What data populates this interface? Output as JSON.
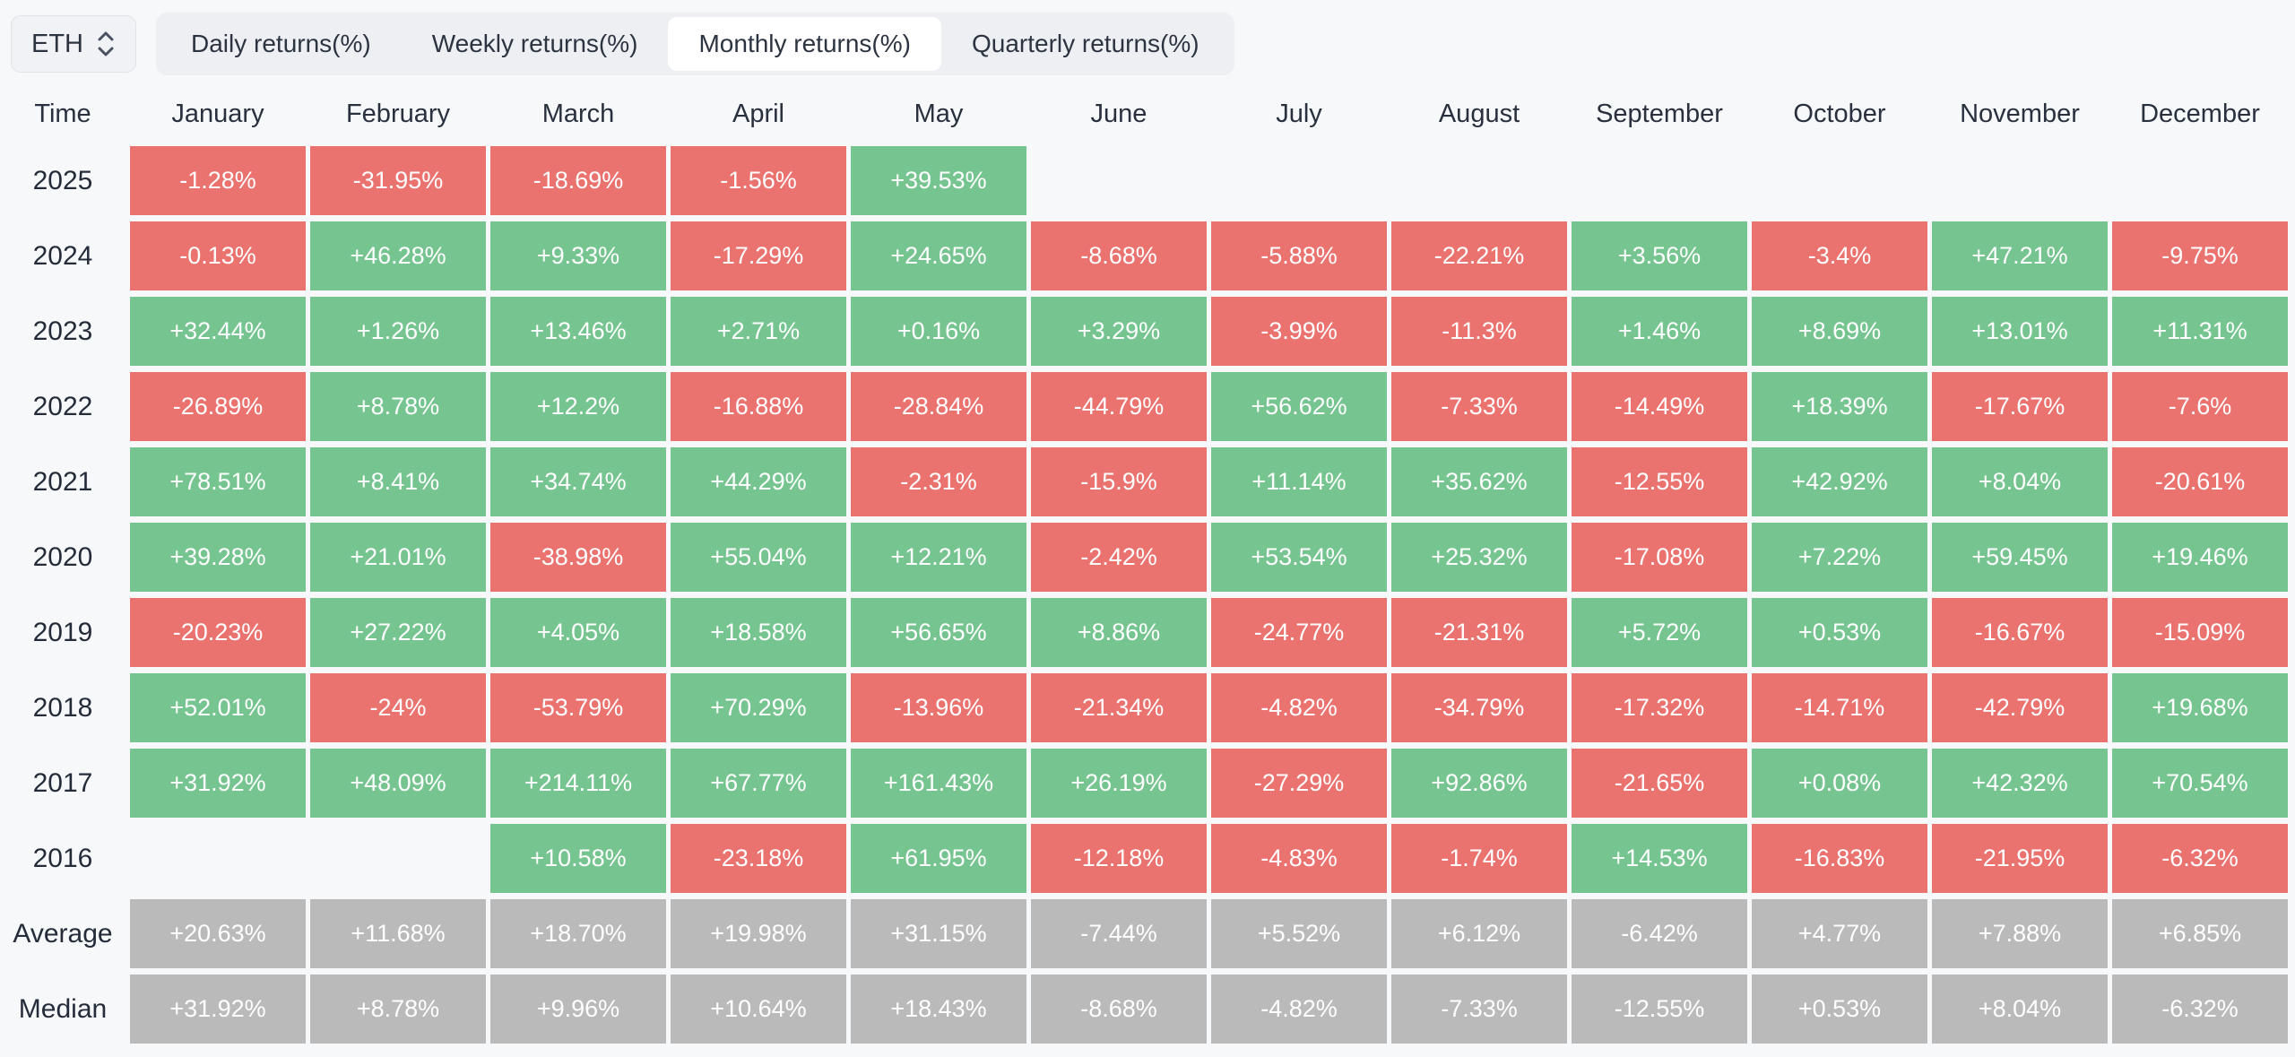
{
  "controls": {
    "symbol_select": {
      "value": "ETH",
      "icon": "updown-chevron-icon"
    },
    "tabs": [
      {
        "label": "Daily returns(%)",
        "active": false
      },
      {
        "label": "Weekly returns(%)",
        "active": false
      },
      {
        "label": "Monthly returns(%)",
        "active": true
      },
      {
        "label": "Quarterly returns(%)",
        "active": false
      }
    ]
  },
  "table": {
    "time_header": "Time",
    "columns": [
      "January",
      "February",
      "March",
      "April",
      "May",
      "June",
      "July",
      "August",
      "September",
      "October",
      "November",
      "December"
    ],
    "rows": [
      {
        "label": "2025",
        "type": "year",
        "values": [
          "-1.28%",
          "-31.95%",
          "-18.69%",
          "-1.56%",
          "+39.53%",
          "",
          "",
          "",
          "",
          "",
          "",
          ""
        ]
      },
      {
        "label": "2024",
        "type": "year",
        "values": [
          "-0.13%",
          "+46.28%",
          "+9.33%",
          "-17.29%",
          "+24.65%",
          "-8.68%",
          "-5.88%",
          "-22.21%",
          "+3.56%",
          "-3.4%",
          "+47.21%",
          "-9.75%"
        ]
      },
      {
        "label": "2023",
        "type": "year",
        "values": [
          "+32.44%",
          "+1.26%",
          "+13.46%",
          "+2.71%",
          "+0.16%",
          "+3.29%",
          "-3.99%",
          "-11.3%",
          "+1.46%",
          "+8.69%",
          "+13.01%",
          "+11.31%"
        ]
      },
      {
        "label": "2022",
        "type": "year",
        "values": [
          "-26.89%",
          "+8.78%",
          "+12.2%",
          "-16.88%",
          "-28.84%",
          "-44.79%",
          "+56.62%",
          "-7.33%",
          "-14.49%",
          "+18.39%",
          "-17.67%",
          "-7.6%"
        ]
      },
      {
        "label": "2021",
        "type": "year",
        "values": [
          "+78.51%",
          "+8.41%",
          "+34.74%",
          "+44.29%",
          "-2.31%",
          "-15.9%",
          "+11.14%",
          "+35.62%",
          "-12.55%",
          "+42.92%",
          "+8.04%",
          "-20.61%"
        ]
      },
      {
        "label": "2020",
        "type": "year",
        "values": [
          "+39.28%",
          "+21.01%",
          "-38.98%",
          "+55.04%",
          "+12.21%",
          "-2.42%",
          "+53.54%",
          "+25.32%",
          "-17.08%",
          "+7.22%",
          "+59.45%",
          "+19.46%"
        ]
      },
      {
        "label": "2019",
        "type": "year",
        "values": [
          "-20.23%",
          "+27.22%",
          "+4.05%",
          "+18.58%",
          "+56.65%",
          "+8.86%",
          "-24.77%",
          "-21.31%",
          "+5.72%",
          "+0.53%",
          "-16.67%",
          "-15.09%"
        ]
      },
      {
        "label": "2018",
        "type": "year",
        "values": [
          "+52.01%",
          "-24%",
          "-53.79%",
          "+70.29%",
          "-13.96%",
          "-21.34%",
          "-4.82%",
          "-34.79%",
          "-17.32%",
          "-14.71%",
          "-42.79%",
          "+19.68%"
        ]
      },
      {
        "label": "2017",
        "type": "year",
        "values": [
          "+31.92%",
          "+48.09%",
          "+214.11%",
          "+67.77%",
          "+161.43%",
          "+26.19%",
          "-27.29%",
          "+92.86%",
          "-21.65%",
          "+0.08%",
          "+42.32%",
          "+70.54%"
        ]
      },
      {
        "label": "2016",
        "type": "year",
        "values": [
          "",
          "",
          "+10.58%",
          "-23.18%",
          "+61.95%",
          "-12.18%",
          "-4.83%",
          "-1.74%",
          "+14.53%",
          "-16.83%",
          "-21.95%",
          "-6.32%"
        ]
      },
      {
        "label": "Average",
        "type": "summary",
        "values": [
          "+20.63%",
          "+11.68%",
          "+18.70%",
          "+19.98%",
          "+31.15%",
          "-7.44%",
          "+5.52%",
          "+6.12%",
          "-6.42%",
          "+4.77%",
          "+7.88%",
          "+6.85%"
        ]
      },
      {
        "label": "Median",
        "type": "summary",
        "values": [
          "+31.92%",
          "+8.78%",
          "+9.96%",
          "+10.64%",
          "+18.43%",
          "-8.68%",
          "-4.82%",
          "-7.33%",
          "-12.55%",
          "+0.53%",
          "+8.04%",
          "-6.32%"
        ]
      }
    ]
  },
  "colors": {
    "positive": "#76c591",
    "negative": "#ea7370",
    "summary": "#bababa",
    "page_bg": "#f7f8fa",
    "active_tab_bg": "#ffffff",
    "tabs_bg": "#edeff3"
  }
}
